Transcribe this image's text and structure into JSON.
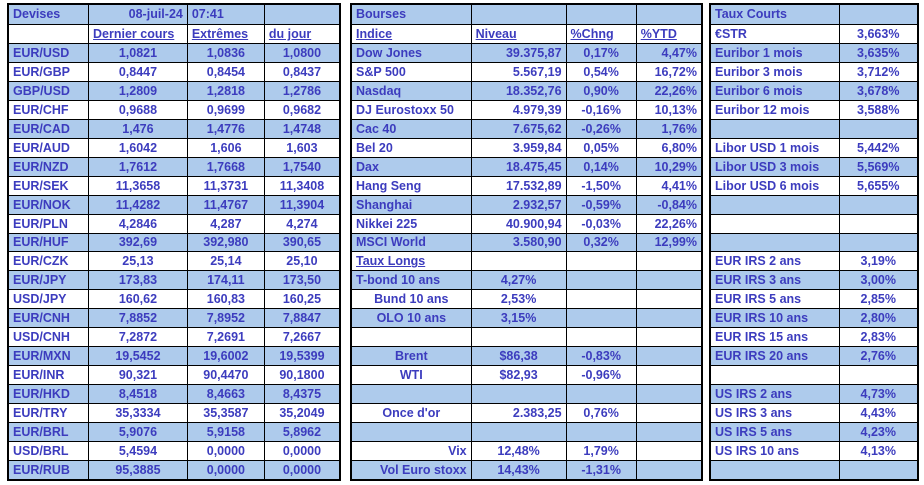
{
  "colors": {
    "row_alt": "#AECBEC",
    "text": "#3C3CBE",
    "border": "#000000"
  },
  "report": {
    "date": "08-juil-24",
    "time": "07:41"
  },
  "devises": {
    "title": "Devises",
    "headers": {
      "dernier": "Dernier cours",
      "extremes": "Extrêmes",
      "dujour": "du jour"
    },
    "rows": [
      {
        "pair": "EUR/USD",
        "dernier": "1,0821",
        "extreme": "1,0836",
        "dujour": "1,0800"
      },
      {
        "pair": "EUR/GBP",
        "dernier": "0,8447",
        "extreme": "0,8454",
        "dujour": "0,8437"
      },
      {
        "pair": "GBP/USD",
        "dernier": "1,2809",
        "extreme": "1,2818",
        "dujour": "1,2786"
      },
      {
        "pair": "EUR/CHF",
        "dernier": "0,9688",
        "extreme": "0,9699",
        "dujour": "0,9682"
      },
      {
        "pair": "EUR/CAD",
        "dernier": "1,476",
        "extreme": "1,4776",
        "dujour": "1,4748"
      },
      {
        "pair": "EUR/AUD",
        "dernier": "1,6042",
        "extreme": "1,606",
        "dujour": "1,603"
      },
      {
        "pair": "EUR/NZD",
        "dernier": "1,7612",
        "extreme": "1,7668",
        "dujour": "1,7540"
      },
      {
        "pair": "EUR/SEK",
        "dernier": "11,3658",
        "extreme": "11,3731",
        "dujour": "11,3408"
      },
      {
        "pair": "EUR/NOK",
        "dernier": "11,4282",
        "extreme": "11,4767",
        "dujour": "11,3904"
      },
      {
        "pair": "EUR/PLN",
        "dernier": "4,2846",
        "extreme": "4,287",
        "dujour": "4,274"
      },
      {
        "pair": "EUR/HUF",
        "dernier": "392,69",
        "extreme": "392,980",
        "dujour": "390,65"
      },
      {
        "pair": "EUR/CZK",
        "dernier": "25,13",
        "extreme": "25,14",
        "dujour": "25,10"
      },
      {
        "pair": "EUR/JPY",
        "dernier": "173,83",
        "extreme": "174,11",
        "dujour": "173,50"
      },
      {
        "pair": "USD/JPY",
        "dernier": "160,62",
        "extreme": "160,83",
        "dujour": "160,25"
      },
      {
        "pair": "EUR/CNH",
        "dernier": "7,8852",
        "extreme": "7,8952",
        "dujour": "7,8847"
      },
      {
        "pair": "USD/CNH",
        "dernier": "7,2872",
        "extreme": "7,2691",
        "dujour": "7,2667"
      },
      {
        "pair": "EUR/MXN",
        "dernier": "19,5452",
        "extreme": "19,6002",
        "dujour": "19,5399"
      },
      {
        "pair": "EUR/INR",
        "dernier": "90,321",
        "extreme": "90,4470",
        "dujour": "90,1800"
      },
      {
        "pair": "EUR/HKD",
        "dernier": "8,4518",
        "extreme": "8,4663",
        "dujour": "8,4375"
      },
      {
        "pair": "EUR/TRY",
        "dernier": "35,3334",
        "extreme": "35,3587",
        "dujour": "35,2049"
      },
      {
        "pair": "EUR/BRL",
        "dernier": "5,9076",
        "extreme": "5,9158",
        "dujour": "5,8962"
      },
      {
        "pair": "USD/BRL",
        "dernier": "5,4594",
        "extreme": "0,0000",
        "dujour": "0,0000"
      },
      {
        "pair": "EUR/RUB",
        "dernier": "95,3885",
        "extreme": "0,0000",
        "dujour": "0,0000"
      }
    ]
  },
  "bourses": {
    "title": "Bourses",
    "headers": {
      "indice": "Indice",
      "niveau": "Niveau",
      "chng": "%Chng",
      "ytd": "%YTD"
    },
    "rows": [
      {
        "indice": "Dow Jones",
        "niveau": "39.375,87",
        "chng": "0,17%",
        "ytd": "4,47%",
        "la": "al",
        "na": "ar"
      },
      {
        "indice": "S&P 500",
        "niveau": "5.567,19",
        "chng": "0,54%",
        "ytd": "16,72%",
        "la": "al",
        "na": "ar"
      },
      {
        "indice": "Nasdaq",
        "niveau": "18.352,76",
        "chng": "0,90%",
        "ytd": "22,26%",
        "la": "al",
        "na": "ar"
      },
      {
        "indice": "DJ Eurostoxx 50",
        "niveau": "4.979,39",
        "chng": "-0,16%",
        "ytd": "10,13%",
        "la": "al",
        "na": "ar"
      },
      {
        "indice": "Cac 40",
        "niveau": "7.675,62",
        "chng": "-0,26%",
        "ytd": "1,76%",
        "la": "al",
        "na": "ar"
      },
      {
        "indice": "Bel 20",
        "niveau": "3.959,84",
        "chng": "0,05%",
        "ytd": "6,80%",
        "la": "al",
        "na": "ar"
      },
      {
        "indice": "Dax",
        "niveau": "18.475,45",
        "chng": "0,14%",
        "ytd": "10,29%",
        "la": "al",
        "na": "ar"
      },
      {
        "indice": "Hang Seng",
        "niveau": "17.532,89",
        "chng": "-1,50%",
        "ytd": "4,41%",
        "la": "al",
        "na": "ar"
      },
      {
        "indice": "Shanghai",
        "niveau": "2.932,57",
        "chng": "-0,59%",
        "ytd": "-0,84%",
        "la": "al",
        "na": "ar"
      },
      {
        "indice": "Nikkei 225",
        "niveau": "40.900,94",
        "chng": "-0,03%",
        "ytd": "22,26%",
        "la": "al",
        "na": "ar"
      },
      {
        "indice": "MSCI World",
        "niveau": "3.580,90",
        "chng": "0,32%",
        "ytd": "12,99%",
        "la": "al",
        "na": "ar"
      },
      {
        "indice": "Taux Longs",
        "niveau": "",
        "chng": "",
        "ytd": "",
        "la": "al",
        "na": "ac",
        "u": true
      },
      {
        "indice": "T-bond 10 ans",
        "niveau": "4,27%",
        "chng": "",
        "ytd": "",
        "la": "al",
        "na": "ac"
      },
      {
        "indice": "Bund 10 ans",
        "niveau": "2,53%",
        "chng": "",
        "ytd": "",
        "la": "ac",
        "na": "ac"
      },
      {
        "indice": "OLO 10 ans",
        "niveau": "3,15%",
        "chng": "",
        "ytd": "",
        "la": "ac",
        "na": "ac"
      },
      {
        "indice": "",
        "niveau": "",
        "chng": "",
        "ytd": "",
        "la": "al",
        "na": "ac"
      },
      {
        "indice": "Brent",
        "niveau": "$86,38",
        "chng": "-0,83%",
        "ytd": "",
        "la": "ac",
        "na": "ac"
      },
      {
        "indice": "WTI",
        "niveau": "$82,93",
        "chng": "-0,96%",
        "ytd": "",
        "la": "ac",
        "na": "ac"
      },
      {
        "indice": "",
        "niveau": "",
        "chng": "",
        "ytd": "",
        "la": "al",
        "na": "ac"
      },
      {
        "indice": "Once d'or",
        "niveau": "2.383,25",
        "chng": "0,76%",
        "ytd": "",
        "la": "ac",
        "na": "ar"
      },
      {
        "indice": "",
        "niveau": "",
        "chng": "",
        "ytd": "",
        "la": "al",
        "na": "ac"
      },
      {
        "indice": "Vix",
        "niveau": "12,48%",
        "chng": "1,79%",
        "ytd": "",
        "la": "ar",
        "na": "ac"
      },
      {
        "indice": "Vol Euro stoxx",
        "niveau": "14,43%",
        "chng": "-1,31%",
        "ytd": "",
        "la": "ar",
        "na": "ac"
      }
    ]
  },
  "taux_courts": {
    "title": "Taux Courts",
    "rows": [
      {
        "label": "€STR",
        "value": "3,663%"
      },
      {
        "label": "Euribor 1 mois",
        "value": "3,635%"
      },
      {
        "label": "Euribor 3 mois",
        "value": "3,712%"
      },
      {
        "label": "Euribor 6 mois",
        "value": "3,678%"
      },
      {
        "label": "Euribor 12 mois",
        "value": "3,588%"
      },
      {
        "label": "",
        "value": ""
      },
      {
        "label": "Libor USD 1 mois",
        "value": "5,442%"
      },
      {
        "label": "Libor USD 3 mois",
        "value": "5,569%"
      },
      {
        "label": "Libor USD 6 mois",
        "value": "5,655%"
      },
      {
        "label": "",
        "value": ""
      },
      {
        "label": "",
        "value": ""
      },
      {
        "label": "",
        "value": ""
      },
      {
        "label": "EUR IRS 2 ans",
        "value": "3,19%"
      },
      {
        "label": "EUR IRS 3 ans",
        "value": "3,00%"
      },
      {
        "label": "EUR IRS 5 ans",
        "value": "2,85%"
      },
      {
        "label": "EUR IRS 10 ans",
        "value": "2,80%"
      },
      {
        "label": "EUR IRS 15 ans",
        "value": "2,83%"
      },
      {
        "label": "EUR IRS 20 ans",
        "value": "2,76%"
      },
      {
        "label": "",
        "value": ""
      },
      {
        "label": "US IRS 2 ans",
        "value": "4,73%"
      },
      {
        "label": "US IRS 3 ans",
        "value": "4,43%"
      },
      {
        "label": "US IRS 5 ans",
        "value": "4,23%"
      },
      {
        "label": "US IRS 10 ans",
        "value": "4,13%"
      },
      {
        "label": "",
        "value": ""
      }
    ]
  }
}
